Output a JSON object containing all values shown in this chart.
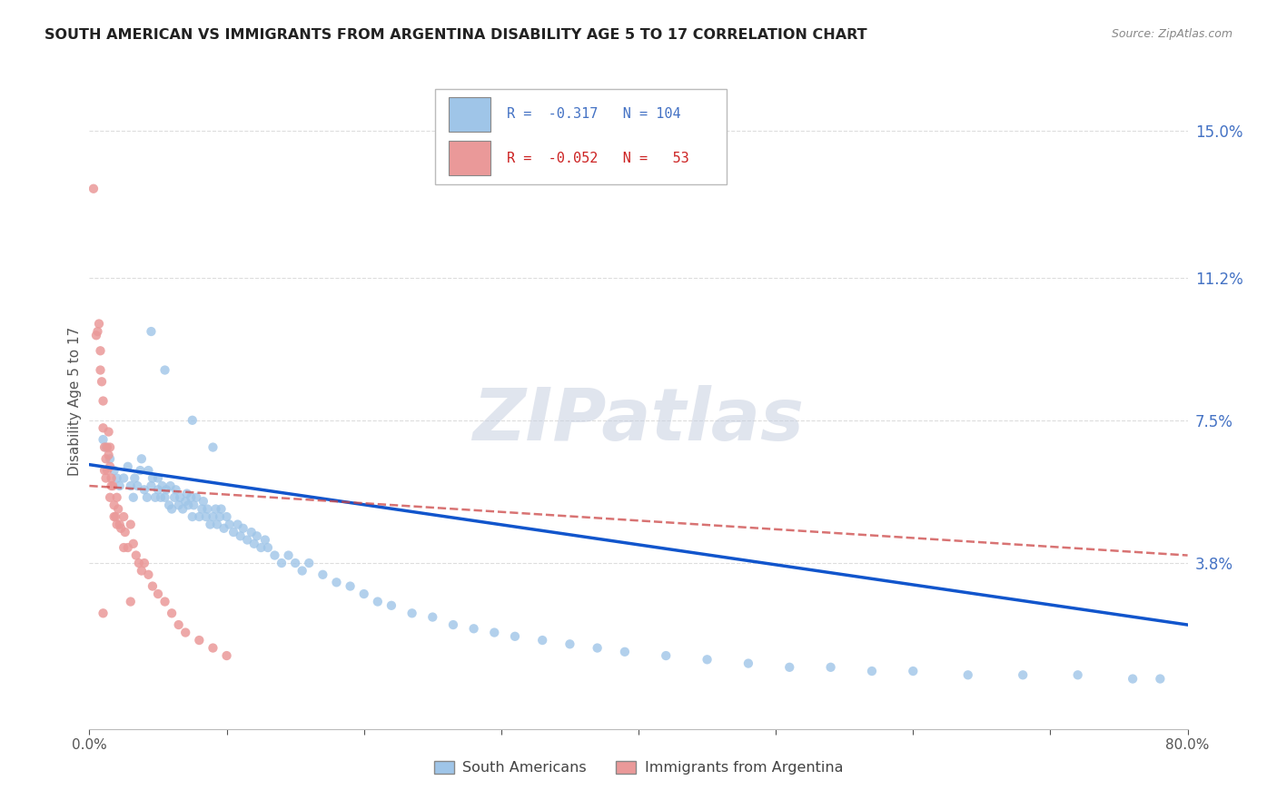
{
  "title": "SOUTH AMERICAN VS IMMIGRANTS FROM ARGENTINA DISABILITY AGE 5 TO 17 CORRELATION CHART",
  "source_text": "Source: ZipAtlas.com",
  "ylabel": "Disability Age 5 to 17",
  "xlim": [
    0.0,
    0.8
  ],
  "ylim": [
    -0.005,
    0.165
  ],
  "xticks": [
    0.0,
    0.1,
    0.2,
    0.3,
    0.4,
    0.5,
    0.6,
    0.7,
    0.8
  ],
  "xticklabels": [
    "0.0%",
    "",
    "",
    "",
    "",
    "",
    "",
    "",
    "80.0%"
  ],
  "yticks_right": [
    0.038,
    0.075,
    0.112,
    0.15
  ],
  "ytick_labels_right": [
    "3.8%",
    "7.5%",
    "11.2%",
    "15.0%"
  ],
  "blue_color": "#9fc5e8",
  "pink_color": "#ea9999",
  "trend_blue": "#1155cc",
  "trend_pink": "#cc4444",
  "watermark": "ZIPatlas",
  "watermark_color": "#c8d0e0",
  "legend_label_blue": "South Americans",
  "legend_label_pink": "Immigrants from Argentina",
  "blue_scatter_x": [
    0.01,
    0.012,
    0.015,
    0.018,
    0.02,
    0.022,
    0.025,
    0.028,
    0.03,
    0.032,
    0.033,
    0.035,
    0.037,
    0.038,
    0.04,
    0.042,
    0.043,
    0.045,
    0.046,
    0.048,
    0.05,
    0.05,
    0.052,
    0.053,
    0.055,
    0.056,
    0.058,
    0.059,
    0.06,
    0.062,
    0.063,
    0.065,
    0.066,
    0.068,
    0.07,
    0.071,
    0.072,
    0.074,
    0.075,
    0.076,
    0.078,
    0.08,
    0.082,
    0.083,
    0.085,
    0.086,
    0.088,
    0.09,
    0.092,
    0.093,
    0.095,
    0.096,
    0.098,
    0.1,
    0.102,
    0.105,
    0.108,
    0.11,
    0.112,
    0.115,
    0.118,
    0.12,
    0.122,
    0.125,
    0.128,
    0.13,
    0.135,
    0.14,
    0.145,
    0.15,
    0.155,
    0.16,
    0.17,
    0.18,
    0.19,
    0.2,
    0.21,
    0.22,
    0.235,
    0.25,
    0.265,
    0.28,
    0.295,
    0.31,
    0.33,
    0.35,
    0.37,
    0.39,
    0.42,
    0.45,
    0.48,
    0.51,
    0.54,
    0.57,
    0.6,
    0.64,
    0.68,
    0.72,
    0.76,
    0.78,
    0.045,
    0.055,
    0.075,
    0.09
  ],
  "blue_scatter_y": [
    0.07,
    0.068,
    0.065,
    0.062,
    0.06,
    0.058,
    0.06,
    0.063,
    0.058,
    0.055,
    0.06,
    0.058,
    0.062,
    0.065,
    0.057,
    0.055,
    0.062,
    0.058,
    0.06,
    0.055,
    0.057,
    0.06,
    0.055,
    0.058,
    0.055,
    0.057,
    0.053,
    0.058,
    0.052,
    0.055,
    0.057,
    0.053,
    0.055,
    0.052,
    0.054,
    0.056,
    0.053,
    0.055,
    0.05,
    0.053,
    0.055,
    0.05,
    0.052,
    0.054,
    0.05,
    0.052,
    0.048,
    0.05,
    0.052,
    0.048,
    0.05,
    0.052,
    0.047,
    0.05,
    0.048,
    0.046,
    0.048,
    0.045,
    0.047,
    0.044,
    0.046,
    0.043,
    0.045,
    0.042,
    0.044,
    0.042,
    0.04,
    0.038,
    0.04,
    0.038,
    0.036,
    0.038,
    0.035,
    0.033,
    0.032,
    0.03,
    0.028,
    0.027,
    0.025,
    0.024,
    0.022,
    0.021,
    0.02,
    0.019,
    0.018,
    0.017,
    0.016,
    0.015,
    0.014,
    0.013,
    0.012,
    0.011,
    0.011,
    0.01,
    0.01,
    0.009,
    0.009,
    0.009,
    0.008,
    0.008,
    0.098,
    0.088,
    0.075,
    0.068
  ],
  "pink_scatter_x": [
    0.003,
    0.005,
    0.006,
    0.007,
    0.008,
    0.008,
    0.009,
    0.01,
    0.01,
    0.011,
    0.011,
    0.012,
    0.012,
    0.013,
    0.013,
    0.014,
    0.014,
    0.015,
    0.015,
    0.016,
    0.016,
    0.017,
    0.018,
    0.019,
    0.02,
    0.021,
    0.022,
    0.023,
    0.025,
    0.026,
    0.028,
    0.03,
    0.032,
    0.034,
    0.036,
    0.038,
    0.04,
    0.043,
    0.046,
    0.05,
    0.055,
    0.06,
    0.065,
    0.07,
    0.08,
    0.09,
    0.1,
    0.015,
    0.018,
    0.02,
    0.025,
    0.03,
    0.01
  ],
  "pink_scatter_y": [
    0.135,
    0.097,
    0.098,
    0.1,
    0.093,
    0.088,
    0.085,
    0.08,
    0.073,
    0.068,
    0.062,
    0.065,
    0.06,
    0.068,
    0.062,
    0.072,
    0.066,
    0.068,
    0.063,
    0.058,
    0.06,
    0.058,
    0.053,
    0.05,
    0.055,
    0.052,
    0.048,
    0.047,
    0.05,
    0.046,
    0.042,
    0.048,
    0.043,
    0.04,
    0.038,
    0.036,
    0.038,
    0.035,
    0.032,
    0.03,
    0.028,
    0.025,
    0.022,
    0.02,
    0.018,
    0.016,
    0.014,
    0.055,
    0.05,
    0.048,
    0.042,
    0.028,
    0.025
  ],
  "blue_trend_x": [
    0.0,
    0.8
  ],
  "blue_trend_y": [
    0.0635,
    0.022
  ],
  "pink_trend_x": [
    0.0,
    0.8
  ],
  "pink_trend_y": [
    0.058,
    0.04
  ]
}
